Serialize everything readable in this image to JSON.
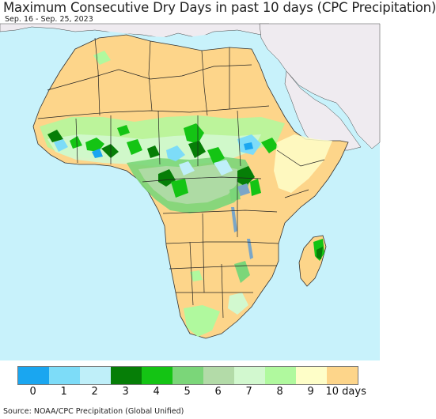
{
  "header": {
    "title": "Maximum Consecutive Dry Days in past 10 days (CPC Precipitation)",
    "date_range": "Sep. 16 - Sep. 25, 2023"
  },
  "map": {
    "ocean_color": "#c8f2fb",
    "non_africa_land_color": "#efebf0",
    "dominant_dry_color": "#fdd58a",
    "legend_max_value_days": 10
  },
  "legend": {
    "swatches": [
      {
        "value": "0",
        "color": "#1aa6f0"
      },
      {
        "value": "1",
        "color": "#7ddcf8"
      },
      {
        "value": "2",
        "color": "#bfeff9"
      },
      {
        "value": "3",
        "color": "#067e07"
      },
      {
        "value": "4",
        "color": "#14c414"
      },
      {
        "value": "5",
        "color": "#7bd679"
      },
      {
        "value": "6",
        "color": "#b3dba8"
      },
      {
        "value": "7",
        "color": "#d2f8cf"
      },
      {
        "value": "8",
        "color": "#b0f99e"
      },
      {
        "value": "9",
        "color": "#fefec8"
      },
      {
        "value": "10 days",
        "color": "#fdd58a"
      }
    ]
  },
  "footer": {
    "source": "Source: NOAA/CPC Precipitation (Global Unified)"
  }
}
